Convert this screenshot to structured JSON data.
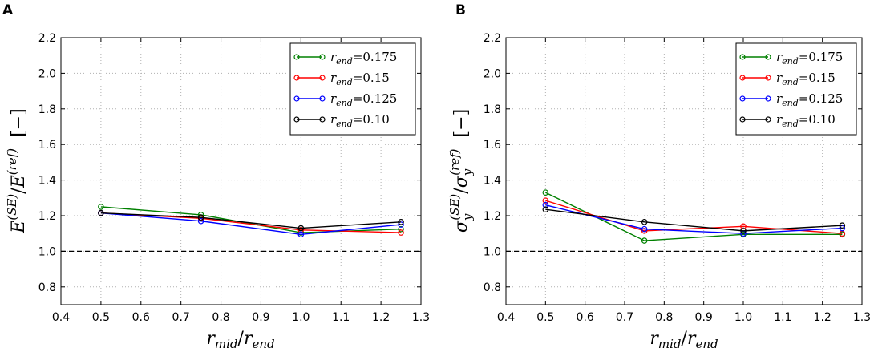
{
  "chart_data": [
    {
      "type": "line",
      "panel_label": "A",
      "x": [
        0.5,
        0.75,
        1.0,
        1.25
      ],
      "xlim": [
        0.4,
        1.3
      ],
      "ylim": [
        0.7,
        2.2
      ],
      "xticks": [
        "0.4",
        "0.5",
        "0.6",
        "0.7",
        "0.8",
        "0.9",
        "1.0",
        "1.1",
        "1.2",
        "1.3"
      ],
      "yticks": [
        "0.8",
        "1.0",
        "1.2",
        "1.4",
        "1.6",
        "1.8",
        "2.0",
        "2.2"
      ],
      "grid": true,
      "legend_position": "top-right",
      "reference_line": 1.0,
      "xlabel": {
        "num_var": "r",
        "num_sub": "mid",
        "den_var": "r",
        "den_sub": "end"
      },
      "ylabel": {
        "num_var": "E",
        "num_sup": "(SE)",
        "den_var": "E",
        "den_sup": "(ref)",
        "unit": "[−]"
      },
      "series": [
        {
          "name": "r_end=0.175",
          "legend_var": "r",
          "legend_sub": "end",
          "legend_val": "=0.175",
          "color": "#008000",
          "values": [
            1.25,
            1.205,
            1.105,
            1.125
          ]
        },
        {
          "name": "r_end=0.15",
          "legend_var": "r",
          "legend_sub": "end",
          "legend_val": "=0.15",
          "color": "#ff0000",
          "values": [
            1.215,
            1.185,
            1.12,
            1.105
          ]
        },
        {
          "name": "r_end=0.125",
          "legend_var": "r",
          "legend_sub": "end",
          "legend_val": "=0.125",
          "color": "#0000ff",
          "values": [
            1.215,
            1.17,
            1.095,
            1.15
          ]
        },
        {
          "name": "r_end=0.10",
          "legend_var": "r",
          "legend_sub": "end",
          "legend_val": "=0.10",
          "color": "#000000",
          "values": [
            1.215,
            1.19,
            1.13,
            1.165
          ]
        }
      ]
    },
    {
      "type": "line",
      "panel_label": "B",
      "x": [
        0.5,
        0.75,
        1.0,
        1.25
      ],
      "xlim": [
        0.4,
        1.3
      ],
      "ylim": [
        0.7,
        2.2
      ],
      "xticks": [
        "0.4",
        "0.5",
        "0.6",
        "0.7",
        "0.8",
        "0.9",
        "1.0",
        "1.1",
        "1.2",
        "1.3"
      ],
      "yticks": [
        "0.8",
        "1.0",
        "1.2",
        "1.4",
        "1.6",
        "1.8",
        "2.0",
        "2.2"
      ],
      "grid": true,
      "legend_position": "top-right",
      "reference_line": 1.0,
      "xlabel": {
        "num_var": "r",
        "num_sub": "mid",
        "den_var": "r",
        "den_sub": "end"
      },
      "ylabel": {
        "num_var": "σ",
        "num_sub": "y",
        "num_sup": "(SE)",
        "den_var": "σ",
        "den_sub": "y",
        "den_sup": "(ref)",
        "unit": "[−]"
      },
      "series": [
        {
          "name": "r_end=0.175",
          "legend_var": "r",
          "legend_sub": "end",
          "legend_val": "=0.175",
          "color": "#008000",
          "values": [
            1.33,
            1.06,
            1.095,
            1.095
          ]
        },
        {
          "name": "r_end=0.15",
          "legend_var": "r",
          "legend_sub": "end",
          "legend_val": "=0.15",
          "color": "#ff0000",
          "values": [
            1.285,
            1.115,
            1.14,
            1.1
          ]
        },
        {
          "name": "r_end=0.125",
          "legend_var": "r",
          "legend_sub": "end",
          "legend_val": "=0.125",
          "color": "#0000ff",
          "values": [
            1.26,
            1.125,
            1.1,
            1.13
          ]
        },
        {
          "name": "r_end=0.10",
          "legend_var": "r",
          "legend_sub": "end",
          "legend_val": "=0.10",
          "color": "#000000",
          "values": [
            1.235,
            1.165,
            1.115,
            1.145
          ]
        }
      ]
    }
  ]
}
